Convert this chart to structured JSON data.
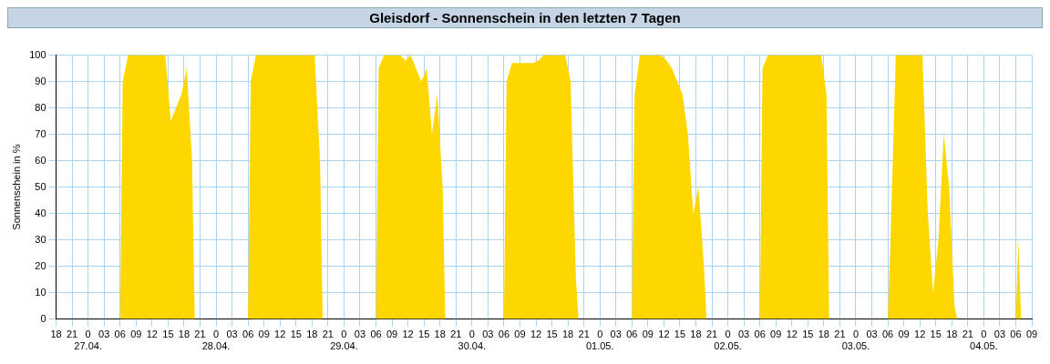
{
  "chart_data": {
    "type": "area",
    "title": "Gleisdorf - Sonnenschein in den letzten 7 Tagen",
    "ylabel": "Sonnenschein in %",
    "x": [
      "--04-27T06:00",
      "--04-27T06:30",
      "--04-27T07:30",
      "--04-27T08:30",
      "--04-27T09:30",
      "--04-27T10:30",
      "--04-27T11:30",
      "--04-27T12:30",
      "--04-27T13:30",
      "--04-27T14:30",
      "--04-27T15:30",
      "--04-27T16:30",
      "--04-27T17:30",
      "--04-27T18:30",
      "--04-27T19:30",
      "--04-27T20:00",
      "--04-28T06:00",
      "--04-28T06:30",
      "--04-28T07:30",
      "--04-28T08:30",
      "--04-28T09:30",
      "--04-28T10:30",
      "--04-28T11:30",
      "--04-28T12:30",
      "--04-28T13:30",
      "--04-28T14:30",
      "--04-28T15:30",
      "--04-28T16:30",
      "--04-28T17:30",
      "--04-28T18:30",
      "--04-28T19:30",
      "--04-28T20:00",
      "--04-29T06:00",
      "--04-29T06:30",
      "--04-29T07:30",
      "--04-29T08:30",
      "--04-29T09:30",
      "--04-29T10:30",
      "--04-29T11:30",
      "--04-29T12:30",
      "--04-29T13:30",
      "--04-29T14:30",
      "--04-29T15:30",
      "--04-29T16:30",
      "--04-29T17:30",
      "--04-29T18:30",
      "--04-29T19:00",
      "--04-30T06:00",
      "--04-30T06:30",
      "--04-30T07:30",
      "--04-30T08:30",
      "--04-30T09:30",
      "--04-30T10:30",
      "--04-30T11:30",
      "--04-30T12:30",
      "--04-30T13:30",
      "--04-30T14:30",
      "--04-30T15:30",
      "--04-30T16:30",
      "--04-30T17:30",
      "--04-30T18:30",
      "--04-30T19:30",
      "--04-30T20:00",
      "--05-01T06:00",
      "--05-01T06:30",
      "--05-01T07:30",
      "--05-01T08:30",
      "--05-01T09:30",
      "--05-01T10:30",
      "--05-01T11:30",
      "--05-01T12:30",
      "--05-01T13:30",
      "--05-01T14:30",
      "--05-01T15:30",
      "--05-01T16:30",
      "--05-01T17:30",
      "--05-01T18:30",
      "--05-01T19:30",
      "--05-01T20:00",
      "--05-02T06:00",
      "--05-02T06:30",
      "--05-02T07:30",
      "--05-02T08:30",
      "--05-02T09:30",
      "--05-02T10:30",
      "--05-02T11:30",
      "--05-02T12:30",
      "--05-02T13:30",
      "--05-02T14:30",
      "--05-02T15:30",
      "--05-02T16:30",
      "--05-02T17:30",
      "--05-02T18:30",
      "--05-02T19:00",
      "--05-03T06:00",
      "--05-03T06:30",
      "--05-03T07:30",
      "--05-03T08:30",
      "--05-03T09:30",
      "--05-03T10:30",
      "--05-03T11:30",
      "--05-03T12:30",
      "--05-03T13:30",
      "--05-03T14:30",
      "--05-03T15:30",
      "--05-03T16:30",
      "--05-03T17:30",
      "--05-03T18:30",
      "--05-03T19:00",
      "--05-04T06:00",
      "--05-04T06:30",
      "--05-04T07:00"
    ],
    "values": [
      0,
      90,
      100,
      100,
      100,
      100,
      100,
      100,
      100,
      100,
      75,
      80,
      85,
      95,
      60,
      0,
      0,
      90,
      100,
      100,
      100,
      100,
      100,
      100,
      100,
      100,
      100,
      100,
      100,
      100,
      60,
      0,
      0,
      95,
      100,
      100,
      100,
      100,
      98,
      100,
      95,
      90,
      95,
      70,
      85,
      50,
      0,
      0,
      90,
      97,
      97,
      97,
      97,
      97,
      98,
      100,
      100,
      100,
      100,
      100,
      90,
      15,
      0,
      0,
      85,
      100,
      100,
      100,
      100,
      100,
      98,
      95,
      90,
      85,
      70,
      40,
      50,
      20,
      0,
      0,
      95,
      100,
      100,
      100,
      100,
      100,
      100,
      100,
      100,
      100,
      100,
      100,
      85,
      0,
      0,
      30,
      100,
      100,
      100,
      100,
      100,
      100,
      40,
      10,
      30,
      70,
      50,
      5,
      0,
      0,
      30,
      0
    ],
    "color": "#ffd700",
    "xlim": [
      "--04-26T18:00",
      "--05-04T09:00"
    ],
    "xticks": [
      {
        "value": "--04-26T18:00",
        "label": "18"
      },
      {
        "value": "--04-26T21:00",
        "label": "21"
      },
      {
        "value": "--04-27T00:00",
        "label": "0\n27.04."
      },
      {
        "value": "--04-27T03:00",
        "label": "03"
      },
      {
        "value": "--04-27T06:00",
        "label": "06"
      },
      {
        "value": "--04-27T09:00",
        "label": "09"
      },
      {
        "value": "--04-27T12:00",
        "label": "12"
      },
      {
        "value": "--04-27T15:00",
        "label": "15"
      },
      {
        "value": "--04-27T18:00",
        "label": "18"
      },
      {
        "value": "--04-27T21:00",
        "label": "21"
      },
      {
        "value": "--04-28T00:00",
        "label": "0\n28.04."
      },
      {
        "value": "--04-28T03:00",
        "label": "03"
      },
      {
        "value": "--04-28T06:00",
        "label": "06"
      },
      {
        "value": "--04-28T09:00",
        "label": "09"
      },
      {
        "value": "--04-28T12:00",
        "label": "12"
      },
      {
        "value": "--04-28T15:00",
        "label": "15"
      },
      {
        "value": "--04-28T18:00",
        "label": "18"
      },
      {
        "value": "--04-28T21:00",
        "label": "21"
      },
      {
        "value": "--04-29T00:00",
        "label": "0\n29.04."
      },
      {
        "value": "--04-29T03:00",
        "label": "03"
      },
      {
        "value": "--04-29T06:00",
        "label": "06"
      },
      {
        "value": "--04-29T09:00",
        "label": "09"
      },
      {
        "value": "--04-29T12:00",
        "label": "12"
      },
      {
        "value": "--04-29T15:00",
        "label": "15"
      },
      {
        "value": "--04-29T18:00",
        "label": "18"
      },
      {
        "value": "--04-29T21:00",
        "label": "21"
      },
      {
        "value": "--04-30T00:00",
        "label": "0\n30.04."
      },
      {
        "value": "--04-30T03:00",
        "label": "03"
      },
      {
        "value": "--04-30T06:00",
        "label": "06"
      },
      {
        "value": "--04-30T09:00",
        "label": "09"
      },
      {
        "value": "--04-30T12:00",
        "label": "12"
      },
      {
        "value": "--04-30T15:00",
        "label": "15"
      },
      {
        "value": "--04-30T18:00",
        "label": "18"
      },
      {
        "value": "--04-30T21:00",
        "label": "21"
      },
      {
        "value": "--05-01T00:00",
        "label": "0\n01.05."
      },
      {
        "value": "--05-01T03:00",
        "label": "03"
      },
      {
        "value": "--05-01T06:00",
        "label": "06"
      },
      {
        "value": "--05-01T09:00",
        "label": "09"
      },
      {
        "value": "--05-01T12:00",
        "label": "12"
      },
      {
        "value": "--05-01T15:00",
        "label": "15"
      },
      {
        "value": "--05-01T18:00",
        "label": "18"
      },
      {
        "value": "--05-01T21:00",
        "label": "21"
      },
      {
        "value": "--05-02T00:00",
        "label": "0\n02.05."
      },
      {
        "value": "--05-02T03:00",
        "label": "03"
      },
      {
        "value": "--05-02T06:00",
        "label": "06"
      },
      {
        "value": "--05-02T09:00",
        "label": "09"
      },
      {
        "value": "--05-02T12:00",
        "label": "12"
      },
      {
        "value": "--05-02T15:00",
        "label": "15"
      },
      {
        "value": "--05-02T18:00",
        "label": "18"
      },
      {
        "value": "--05-02T21:00",
        "label": "21"
      },
      {
        "value": "--05-03T00:00",
        "label": "0\n03.05."
      },
      {
        "value": "--05-03T03:00",
        "label": "03"
      },
      {
        "value": "--05-03T06:00",
        "label": "06"
      },
      {
        "value": "--05-03T09:00",
        "label": "09"
      },
      {
        "value": "--05-03T12:00",
        "label": "12"
      },
      {
        "value": "--05-03T15:00",
        "label": "15"
      },
      {
        "value": "--05-03T18:00",
        "label": "18"
      },
      {
        "value": "--05-03T21:00",
        "label": "21"
      },
      {
        "value": "--05-04T00:00",
        "label": "0\n04.05."
      },
      {
        "value": "--05-04T03:00",
        "label": "03"
      },
      {
        "value": "--05-04T06:00",
        "label": "06"
      },
      {
        "value": "--05-04T09:00",
        "label": "09"
      }
    ],
    "ylim": [
      0,
      100
    ],
    "yticks": [
      0,
      10,
      20,
      30,
      40,
      50,
      60,
      70,
      80,
      90,
      100
    ],
    "grid": true
  }
}
